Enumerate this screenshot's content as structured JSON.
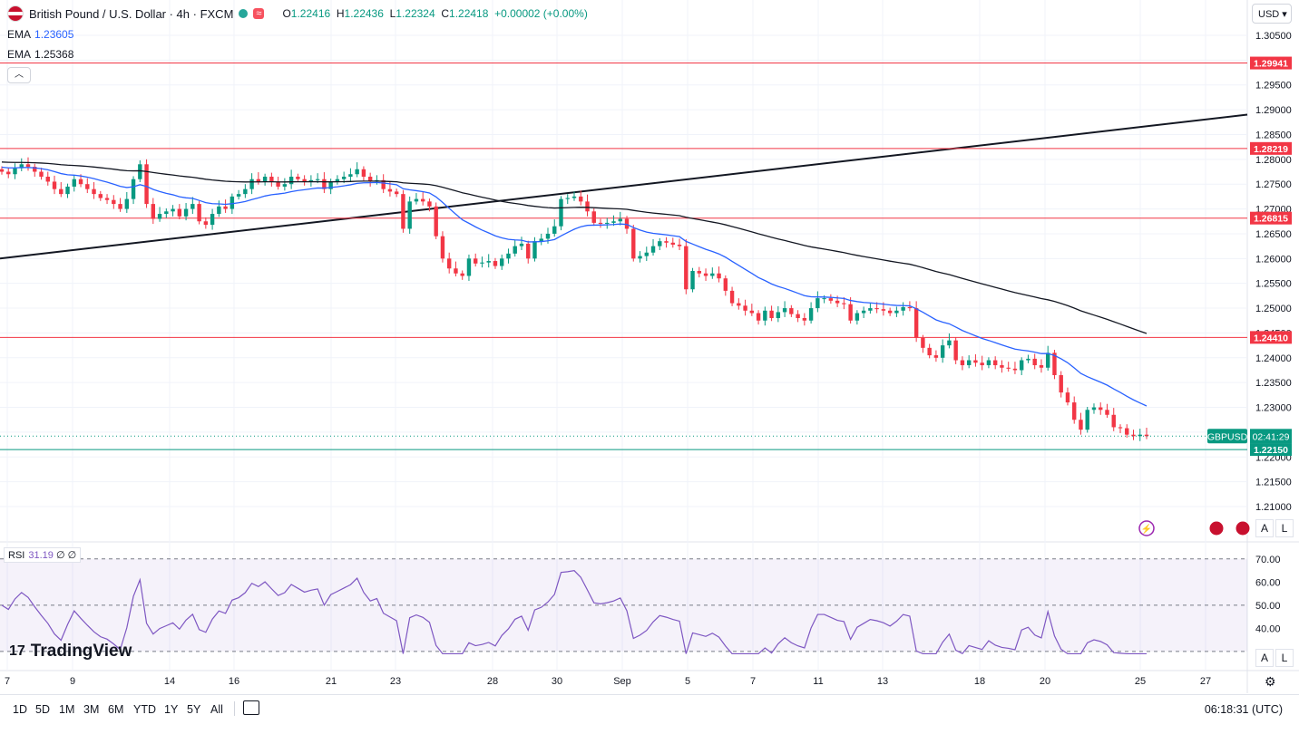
{
  "header": {
    "instrument": "British Pound / U.S. Dollar · 4h · FXCM",
    "ohlc": {
      "o_label": "O",
      "o": "1.22416",
      "h_label": "H",
      "h": "1.22436",
      "l_label": "L",
      "l": "1.22324",
      "c_label": "C",
      "c": "1.22418",
      "change": "+0.00002 (+0.00%)"
    },
    "currency": "USD"
  },
  "indicators": [
    {
      "name": "EMA",
      "value": "1.23605",
      "color": "#2962ff"
    },
    {
      "name": "EMA",
      "value": "1.25368",
      "color": "#131722"
    }
  ],
  "collapse_icon": "chevron-up-icon",
  "price_axis": {
    "ticks": [
      "1.30500",
      "1.30000",
      "1.29500",
      "1.29000",
      "1.28500",
      "1.28000",
      "1.27500",
      "1.27000",
      "1.26500",
      "1.26000",
      "1.25500",
      "1.25000",
      "1.24500",
      "1.24000",
      "1.23500",
      "1.23000",
      "1.22500",
      "1.22000",
      "1.21500",
      "1.21000"
    ],
    "levels": [
      {
        "value": 1.29941,
        "label": "1.29941",
        "color": "#f23645"
      },
      {
        "value": 1.28219,
        "label": "1.28219",
        "color": "#f23645"
      },
      {
        "value": 1.26815,
        "label": "1.26815",
        "color": "#f23645"
      },
      {
        "value": 1.2441,
        "label": "1.24410",
        "color": "#f23645"
      },
      {
        "value": 1.2215,
        "label": "1.22150",
        "color": "#089981"
      }
    ],
    "symbol_tag": "GBPUSD",
    "countdown": "02:41:29"
  },
  "time_axis": [
    "7",
    "9",
    "14",
    "16",
    "21",
    "23",
    "28",
    "30",
    "Sep",
    "5",
    "7",
    "11",
    "13",
    "18",
    "20",
    "25",
    "27"
  ],
  "rsi": {
    "label": "RSI",
    "value": "31.19",
    "extra1": "∅",
    "extra2": "∅",
    "ticks": [
      "70.00",
      "60.00",
      "50.00",
      "40.00"
    ],
    "color": "#7e57c2"
  },
  "axis_buttons": {
    "auto": "A",
    "log": "L"
  },
  "logo": {
    "text": "TradingView",
    "mark": "17"
  },
  "timeframes": [
    "1D",
    "5D",
    "1M",
    "3M",
    "6M",
    "YTD",
    "1Y",
    "5Y",
    "All"
  ],
  "clock": "06:18:31 (UTC)",
  "chart_data": {
    "type": "candlestick",
    "title": "British Pound / U.S. Dollar · 4h · FXCM",
    "close_series": [
      1.2775,
      1.277,
      1.2782,
      1.279,
      1.2785,
      1.2775,
      1.2765,
      1.2755,
      1.274,
      1.273,
      1.2745,
      1.276,
      1.275,
      1.274,
      1.273,
      1.2722,
      1.2718,
      1.271,
      1.27,
      1.272,
      1.276,
      1.279,
      1.271,
      1.268,
      1.269,
      1.2695,
      1.27,
      1.2685,
      1.27,
      1.271,
      1.2675,
      1.2668,
      1.269,
      1.2705,
      1.27,
      1.2725,
      1.273,
      1.274,
      1.276,
      1.2755,
      1.2765,
      1.2755,
      1.2745,
      1.275,
      1.2765,
      1.276,
      1.2755,
      1.2758,
      1.276,
      1.274,
      1.2755,
      1.276,
      1.2765,
      1.277,
      1.278,
      1.2765,
      1.2755,
      1.2758,
      1.274,
      1.2735,
      1.273,
      1.266,
      1.2715,
      1.272,
      1.2715,
      1.2705,
      1.2645,
      1.26,
      1.258,
      1.257,
      1.2565,
      1.26,
      1.259,
      1.2592,
      1.2595,
      1.2585,
      1.26,
      1.261,
      1.2625,
      1.263,
      1.26,
      1.2635,
      1.264,
      1.265,
      1.2665,
      1.272,
      1.2722,
      1.2725,
      1.2715,
      1.2695,
      1.2672,
      1.267,
      1.2672,
      1.2675,
      1.268,
      1.266,
      1.26,
      1.2605,
      1.2612,
      1.2625,
      1.2635,
      1.2632,
      1.2628,
      1.2625,
      1.2538,
      1.2575,
      1.257,
      1.2565,
      1.257,
      1.256,
      1.2535,
      1.251,
      1.2505,
      1.2495,
      1.249,
      1.2475,
      1.2495,
      1.248,
      1.2492,
      1.25,
      1.2488,
      1.248,
      1.2475,
      1.25,
      1.252,
      1.252,
      1.2515,
      1.251,
      1.2508,
      1.2475,
      1.249,
      1.2495,
      1.25,
      1.2498,
      1.2495,
      1.249,
      1.2495,
      1.2502,
      1.25,
      1.244,
      1.242,
      1.2405,
      1.24,
      1.2425,
      1.2435,
      1.2395,
      1.2385,
      1.2395,
      1.239,
      1.2385,
      1.2395,
      1.2385,
      1.238,
      1.2378,
      1.2375,
      1.2395,
      1.2398,
      1.2385,
      1.238,
      1.241,
      1.2365,
      1.233,
      1.231,
      1.2275,
      1.2255,
      1.2295,
      1.23,
      1.2295,
      1.2285,
      1.226,
      1.2258,
      1.2245,
      1.2242,
      1.2245,
      1.2242
    ],
    "ema_fast": {
      "name": "EMA",
      "last": 1.23605
    },
    "ema_slow": {
      "name": "EMA",
      "last": 1.25368
    },
    "ylim": [
      1.208,
      1.307
    ],
    "rsi_range": [
      30,
      70
    ]
  }
}
